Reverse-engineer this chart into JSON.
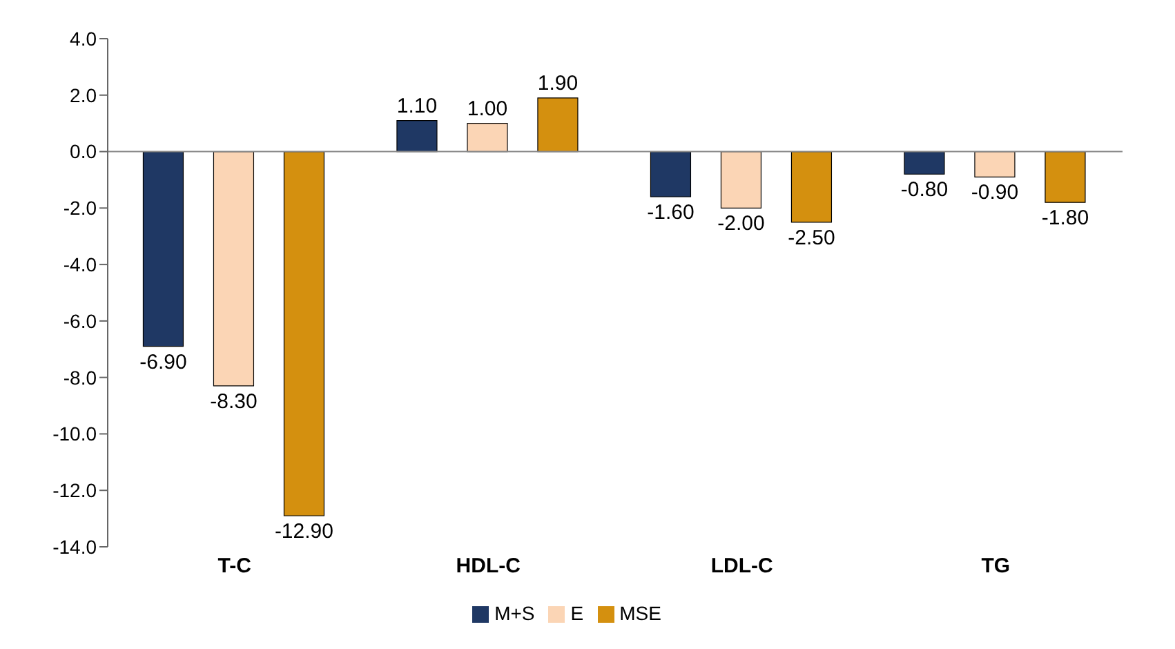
{
  "chart_data": {
    "type": "bar",
    "categories": [
      "T-C",
      "HDL-C",
      "LDL-C",
      "TG"
    ],
    "series": [
      {
        "name": "M+S",
        "color": "#1f3864",
        "values": [
          -6.9,
          1.1,
          -1.6,
          -0.8
        ],
        "value_labels": [
          "-6.90",
          "1.10",
          "-1.60",
          "-0.80"
        ]
      },
      {
        "name": "E",
        "color": "#fbd5b5",
        "values": [
          -8.3,
          1.0,
          -2.0,
          -0.9
        ],
        "value_labels": [
          "-8.30",
          "1.00",
          "-2.00",
          "-0.90"
        ]
      },
      {
        "name": "MSE",
        "color": "#d4900f",
        "values": [
          -12.9,
          1.9,
          -2.5,
          -1.8
        ],
        "value_labels": [
          "-12.90",
          "1.90",
          "-2.50",
          "-1.80"
        ]
      }
    ],
    "ylim": [
      -14,
      4
    ],
    "yticks": [
      {
        "value": -14,
        "label": "-14.0"
      },
      {
        "value": -12,
        "label": "-12.0"
      },
      {
        "value": -10,
        "label": "-10.0"
      },
      {
        "value": -8,
        "label": "-8.0"
      },
      {
        "value": -6,
        "label": "-6.0"
      },
      {
        "value": -4,
        "label": "-4.0"
      },
      {
        "value": -2,
        "label": "-2.0"
      },
      {
        "value": 0,
        "label": "0.0"
      },
      {
        "value": 2,
        "label": "2.0"
      },
      {
        "value": 4,
        "label": "4.0"
      }
    ],
    "legend": "bottom"
  }
}
